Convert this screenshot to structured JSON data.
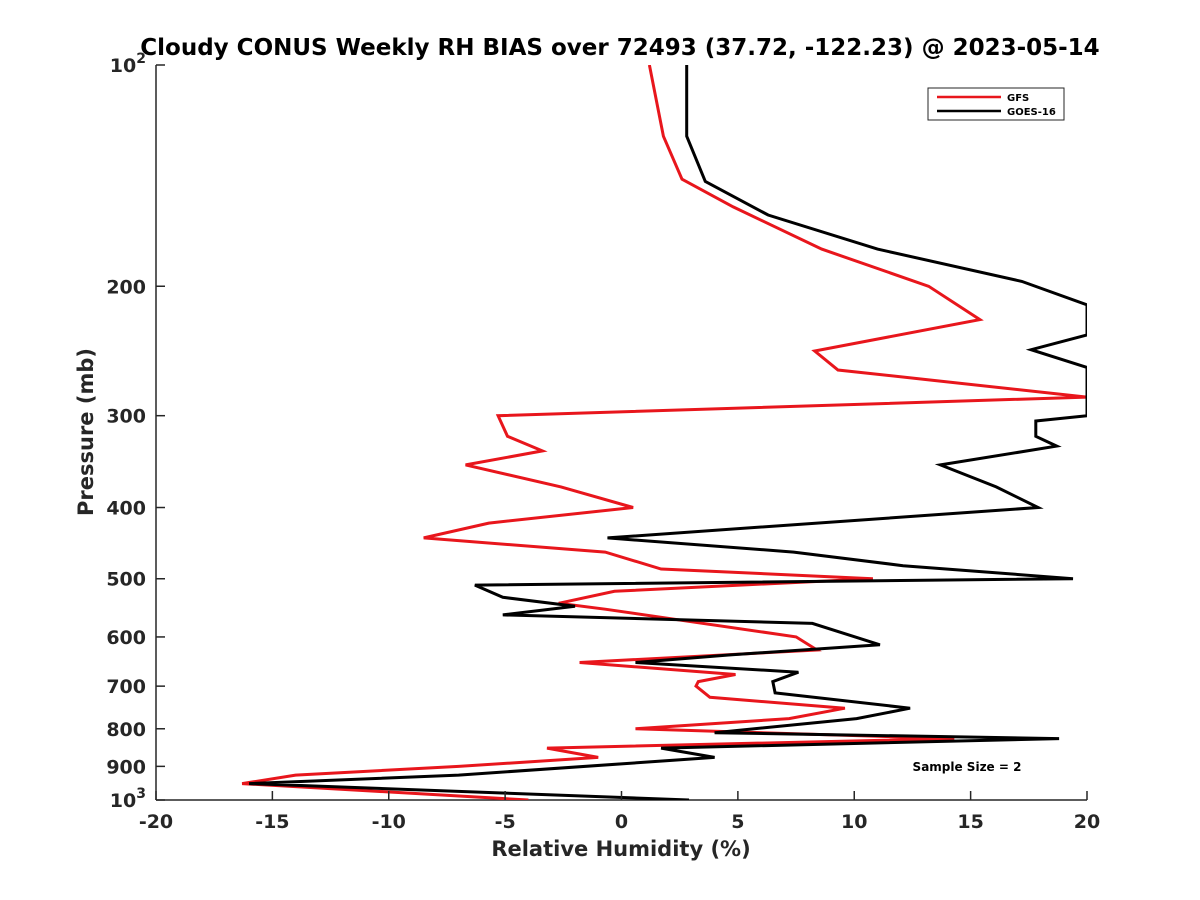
{
  "chart_data": {
    "type": "line",
    "title": "Cloudy CONUS Weekly RH BIAS over 72493 (37.72, -122.23) @ 2023-05-14",
    "xlabel": "Relative Humidity (%)",
    "ylabel": "Pressure (mb)",
    "xlim": [
      -20,
      20
    ],
    "ylim": [
      1000,
      100
    ],
    "y_scale": "log",
    "y_reversed": true,
    "grid": false,
    "legend_position": "top-right",
    "x_ticks": [
      "-20",
      "-15",
      "-10",
      "-5",
      "0",
      "5",
      "10",
      "15",
      "20"
    ],
    "y_ticks": [
      {
        "value": 100,
        "base": "10",
        "exp": "2"
      },
      {
        "value": 200,
        "label": "200"
      },
      {
        "value": 300,
        "label": "300"
      },
      {
        "value": 400,
        "label": "400"
      },
      {
        "value": 500,
        "label": "500"
      },
      {
        "value": 600,
        "label": "600"
      },
      {
        "value": 700,
        "label": "700"
      },
      {
        "value": 800,
        "label": "800"
      },
      {
        "value": 900,
        "label": "900"
      },
      {
        "value": 1000,
        "base": "10",
        "exp": "3"
      }
    ],
    "annotation": "Sample Size = 2",
    "series": [
      {
        "name": "GFS",
        "color": "#e8161c",
        "points": [
          [
            -4.0,
            1000
          ],
          [
            -16.3,
            950
          ],
          [
            -14.0,
            925
          ],
          [
            -7.0,
            900
          ],
          [
            -1.0,
            875
          ],
          [
            -3.2,
            850
          ],
          [
            14.3,
            825
          ],
          [
            0.6,
            800
          ],
          [
            7.2,
            775
          ],
          [
            9.6,
            750
          ],
          [
            3.8,
            725
          ],
          [
            3.2,
            700
          ],
          [
            3.3,
            690
          ],
          [
            4.9,
            675
          ],
          [
            -1.8,
            650
          ],
          [
            8.4,
            625
          ],
          [
            7.5,
            600
          ],
          [
            -0.7,
            550
          ],
          [
            -2.7,
            540
          ],
          [
            -0.3,
            520
          ],
          [
            10.8,
            500
          ],
          [
            1.7,
            485
          ],
          [
            -0.7,
            460
          ],
          [
            -8.5,
            440
          ],
          [
            -5.7,
            420
          ],
          [
            0.5,
            400
          ],
          [
            -2.6,
            375
          ],
          [
            -6.7,
            350
          ],
          [
            -3.4,
            335
          ],
          [
            -4.9,
            320
          ],
          [
            -5.3,
            300
          ],
          [
            20.0,
            283
          ],
          [
            9.3,
            260
          ],
          [
            8.3,
            245
          ],
          [
            15.4,
            222
          ],
          [
            13.2,
            200
          ],
          [
            8.6,
            178
          ],
          [
            4.8,
            156
          ],
          [
            2.6,
            143
          ],
          [
            1.8,
            125
          ],
          [
            1.2,
            100
          ]
        ]
      },
      {
        "name": "GOES-16",
        "color": "#000000",
        "points": [
          [
            2.9,
            1000
          ],
          [
            -16.0,
            950
          ],
          [
            -7.0,
            925
          ],
          [
            4.0,
            875
          ],
          [
            1.7,
            850
          ],
          [
            18.8,
            825
          ],
          [
            4.0,
            810
          ],
          [
            10.1,
            775
          ],
          [
            12.4,
            750
          ],
          [
            6.6,
            715
          ],
          [
            6.5,
            690
          ],
          [
            7.6,
            670
          ],
          [
            0.6,
            650
          ],
          [
            4.6,
            635
          ],
          [
            11.1,
            615
          ],
          [
            8.2,
            575
          ],
          [
            -5.1,
            560
          ],
          [
            -2.0,
            545
          ],
          [
            -5.1,
            530
          ],
          [
            -6.3,
            510
          ],
          [
            19.4,
            500
          ],
          [
            12.1,
            480
          ],
          [
            7.4,
            460
          ],
          [
            -0.6,
            440
          ],
          [
            17.9,
            400
          ],
          [
            16.1,
            375
          ],
          [
            13.7,
            350
          ],
          [
            18.7,
            330
          ],
          [
            17.8,
            320
          ],
          [
            17.8,
            305
          ],
          [
            20.0,
            300
          ],
          [
            20.0,
            258
          ],
          [
            17.6,
            244
          ],
          [
            20.0,
            233
          ],
          [
            20.0,
            212
          ],
          [
            17.2,
            197
          ],
          [
            11.0,
            178
          ],
          [
            6.3,
            160
          ],
          [
            3.6,
            144
          ],
          [
            2.8,
            125
          ],
          [
            2.8,
            100
          ]
        ]
      }
    ]
  }
}
